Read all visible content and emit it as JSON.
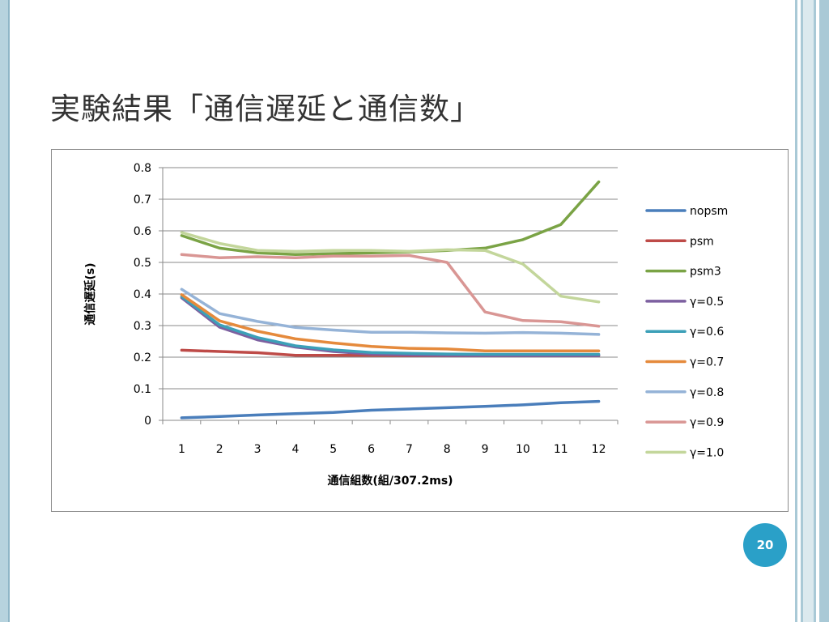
{
  "slide": {
    "title": "実験結果「通信遅延と通信数」",
    "page_number": "20"
  },
  "colors": {
    "nopsm": "#4a7ebb",
    "psm": "#be4b48",
    "psm3": "#7aa345",
    "y05": "#7d60a0",
    "y06": "#3ca0b8",
    "y07": "#e58a3c",
    "y08": "#95b3d7",
    "y09": "#d99694",
    "y10": "#c3d69b"
  },
  "chart_data": {
    "type": "line",
    "xlabel": "通信組数(組/307.2ms)",
    "ylabel": "通信遅延(s)",
    "ylim": [
      0,
      0.8
    ],
    "yticks": [
      "0",
      "0.1",
      "0.2",
      "0.3",
      "0.4",
      "0.5",
      "0.6",
      "0.7",
      "0.8"
    ],
    "grid": true,
    "legend_position": "right",
    "categories": [
      "1",
      "2",
      "3",
      "4",
      "5",
      "6",
      "7",
      "8",
      "9",
      "10",
      "11",
      "12"
    ],
    "series": [
      {
        "name": "nopsm",
        "values": [
          0.008,
          0.012,
          0.017,
          0.021,
          0.025,
          0.032,
          0.036,
          0.04,
          0.044,
          0.049,
          0.056,
          0.06
        ]
      },
      {
        "name": "psm",
        "values": [
          0.222,
          0.218,
          0.214,
          0.206,
          0.206,
          0.206,
          0.205,
          0.205,
          0.205,
          0.205,
          0.205,
          0.205
        ]
      },
      {
        "name": "psm3",
        "values": [
          0.585,
          0.545,
          0.53,
          0.525,
          0.528,
          0.53,
          0.533,
          0.538,
          0.545,
          0.572,
          0.62,
          0.755
        ]
      },
      {
        "name": "γ=0.5",
        "values": [
          0.388,
          0.295,
          0.255,
          0.232,
          0.218,
          0.21,
          0.207,
          0.206,
          0.205,
          0.205,
          0.205,
          0.205
        ]
      },
      {
        "name": "γ=0.6",
        "values": [
          0.392,
          0.302,
          0.262,
          0.236,
          0.223,
          0.215,
          0.212,
          0.21,
          0.209,
          0.209,
          0.209,
          0.209
        ]
      },
      {
        "name": "γ=0.7",
        "values": [
          0.398,
          0.315,
          0.282,
          0.258,
          0.245,
          0.234,
          0.228,
          0.226,
          0.22,
          0.22,
          0.22,
          0.22
        ]
      },
      {
        "name": "γ=0.8",
        "values": [
          0.415,
          0.338,
          0.313,
          0.294,
          0.286,
          0.279,
          0.279,
          0.277,
          0.276,
          0.278,
          0.276,
          0.272
        ]
      },
      {
        "name": "γ=0.9",
        "values": [
          0.525,
          0.515,
          0.518,
          0.515,
          0.52,
          0.52,
          0.522,
          0.5,
          0.343,
          0.316,
          0.312,
          0.298
        ]
      },
      {
        "name": "γ=1.0",
        "values": [
          0.595,
          0.56,
          0.538,
          0.535,
          0.538,
          0.538,
          0.535,
          0.54,
          0.538,
          0.495,
          0.393,
          0.375
        ]
      }
    ]
  }
}
